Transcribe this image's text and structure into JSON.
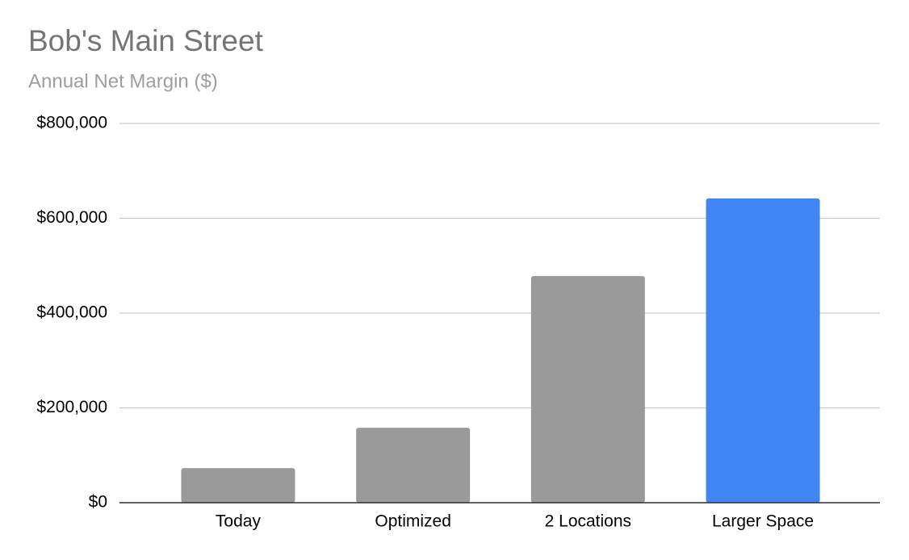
{
  "chart_data": {
    "type": "bar",
    "title": "Bob's Main Street",
    "subtitle": "Annual Net Margin ($)",
    "categories": [
      "Today",
      "Optimized",
      "2 Locations",
      "Larger Space"
    ],
    "values": [
      73000,
      158000,
      478000,
      642000
    ],
    "colors": [
      "#9a9a9a",
      "#9a9a9a",
      "#9a9a9a",
      "#4285f4"
    ],
    "ylim": [
      0,
      800000
    ],
    "yticks": [
      {
        "value": 0,
        "label": "$0"
      },
      {
        "value": 200000,
        "label": "$200,000"
      },
      {
        "value": 400000,
        "label": "$400,000"
      },
      {
        "value": 600000,
        "label": "$600,000"
      },
      {
        "value": 800000,
        "label": "$800,000"
      }
    ],
    "grid": true
  }
}
